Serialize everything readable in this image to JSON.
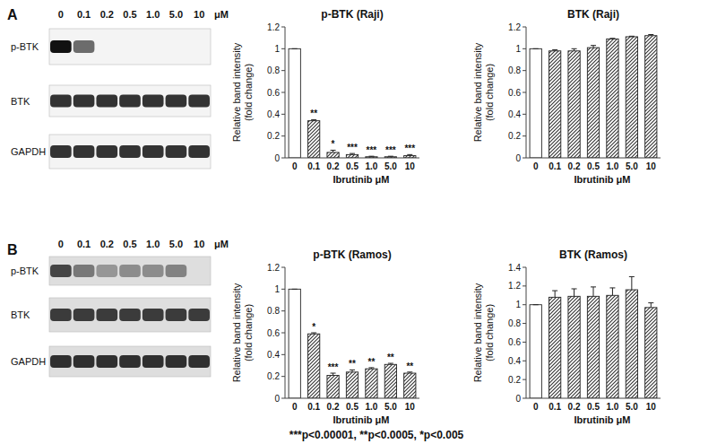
{
  "blots": [
    {
      "panel": "A",
      "lanes": [
        "0",
        "0.1",
        "0.2",
        "0.5",
        "1.0",
        "5.0",
        "10"
      ],
      "unit": "μM",
      "rows": [
        {
          "label": "p-BTK",
          "bands": [
            1,
            0.6,
            0,
            0,
            0,
            0,
            0
          ]
        },
        {
          "label": "BTK",
          "bands": [
            0.85,
            0.85,
            0.85,
            0.85,
            0.85,
            0.85,
            0.85
          ]
        },
        {
          "label": "GAPDH",
          "bands": [
            0.85,
            0.85,
            0.85,
            0.85,
            0.85,
            0.85,
            0.85
          ]
        }
      ]
    },
    {
      "panel": "B",
      "lanes": [
        "0",
        "0.1",
        "0.2",
        "0.5",
        "1.0",
        "5.0",
        "10"
      ],
      "unit": "μM",
      "rows": [
        {
          "label": "p-BTK",
          "bands": [
            0.75,
            0.5,
            0.35,
            0.4,
            0.4,
            0.45,
            0
          ]
        },
        {
          "label": "BTK",
          "bands": [
            0.8,
            0.8,
            0.8,
            0.8,
            0.8,
            0.8,
            0.8
          ]
        },
        {
          "label": "GAPDH",
          "bands": [
            0.85,
            0.85,
            0.85,
            0.85,
            0.85,
            0.85,
            0.85
          ]
        }
      ]
    }
  ],
  "chart_data": [
    {
      "type": "bar",
      "title": "p-BTK (Raji)",
      "ylabel": [
        "Relative band intensity",
        "(fold change)"
      ],
      "xlabel": "Ibrutinib μM",
      "categories": [
        "0",
        "0.1",
        "0.2",
        "0.5",
        "1.0",
        "5.0",
        "10"
      ],
      "values": [
        1,
        0.34,
        0.05,
        0.03,
        0.01,
        0.01,
        0.02
      ],
      "errors": [
        0,
        0.01,
        0.02,
        0.01,
        0.005,
        0.005,
        0.01
      ],
      "annotations": [
        null,
        "**",
        "*",
        "***",
        "***",
        "***",
        "***"
      ],
      "colors": [
        "#ffffff",
        "#333333",
        "#333333",
        "#333333",
        "#333333",
        "#333333",
        "#333333"
      ],
      "ylim": [
        0,
        1.2
      ],
      "yticks": [
        0,
        0.2,
        0.4,
        0.6,
        0.8,
        1,
        1.2
      ]
    },
    {
      "type": "bar",
      "title": "BTK (Raji)",
      "ylabel": [
        "Relative band intensity",
        "(fold change)"
      ],
      "xlabel": "Ibrutinib μM",
      "categories": [
        "0",
        "0.1",
        "0.2",
        "0.5",
        "1.0",
        "5.0",
        "10"
      ],
      "values": [
        1,
        0.98,
        0.98,
        1.01,
        1.09,
        1.11,
        1.12
      ],
      "errors": [
        0,
        0.01,
        0.02,
        0.02,
        0.005,
        0.005,
        0.01
      ],
      "colors": [
        "#ffffff",
        "#333333",
        "#333333",
        "#333333",
        "#333333",
        "#333333",
        "#333333"
      ],
      "ylim": [
        0,
        1.2
      ],
      "yticks": [
        0,
        0.2,
        0.4,
        0.6,
        0.8,
        1,
        1.2
      ]
    },
    {
      "type": "bar",
      "title": "p-BTK (Ramos)",
      "ylabel": [
        "Relative band intensity",
        "(fold change)"
      ],
      "xlabel": "Ibrutinib μM",
      "categories": [
        "0",
        "0.1",
        "0.2",
        "0.5",
        "1.0",
        "5.0",
        "10"
      ],
      "values": [
        1,
        0.59,
        0.21,
        0.24,
        0.27,
        0.31,
        0.23
      ],
      "errors": [
        0,
        0.01,
        0.02,
        0.02,
        0.01,
        0.01,
        0.01
      ],
      "annotations": [
        null,
        "*",
        "***",
        "**",
        "**",
        "**",
        "**"
      ],
      "colors": [
        "#ffffff",
        "#333333",
        "#333333",
        "#333333",
        "#333333",
        "#333333",
        "#333333"
      ],
      "ylim": [
        0,
        1.2
      ],
      "yticks": [
        0,
        0.2,
        0.4,
        0.6,
        0.8,
        1,
        1.2
      ]
    },
    {
      "type": "bar",
      "title": "BTK (Ramos)",
      "ylabel": [
        "Relative band intensity",
        "(fold change)"
      ],
      "xlabel": "Ibrutinib μM",
      "categories": [
        "0",
        "0.1",
        "0.2",
        "0.5",
        "1.0",
        "5.0",
        "10"
      ],
      "values": [
        1,
        1.08,
        1.09,
        1.09,
        1.1,
        1.16,
        0.97
      ],
      "errors": [
        0,
        0.07,
        0.08,
        0.1,
        0.08,
        0.14,
        0.05
      ],
      "colors": [
        "#ffffff",
        "#333333",
        "#333333",
        "#333333",
        "#333333",
        "#333333",
        "#333333"
      ],
      "ylim": [
        0,
        1.4
      ],
      "yticks": [
        0,
        0.2,
        0.4,
        0.6,
        0.8,
        1,
        1.2,
        1.4
      ]
    }
  ],
  "footnote": "***p<0.00001, **p<0.0005, *p<0.005"
}
